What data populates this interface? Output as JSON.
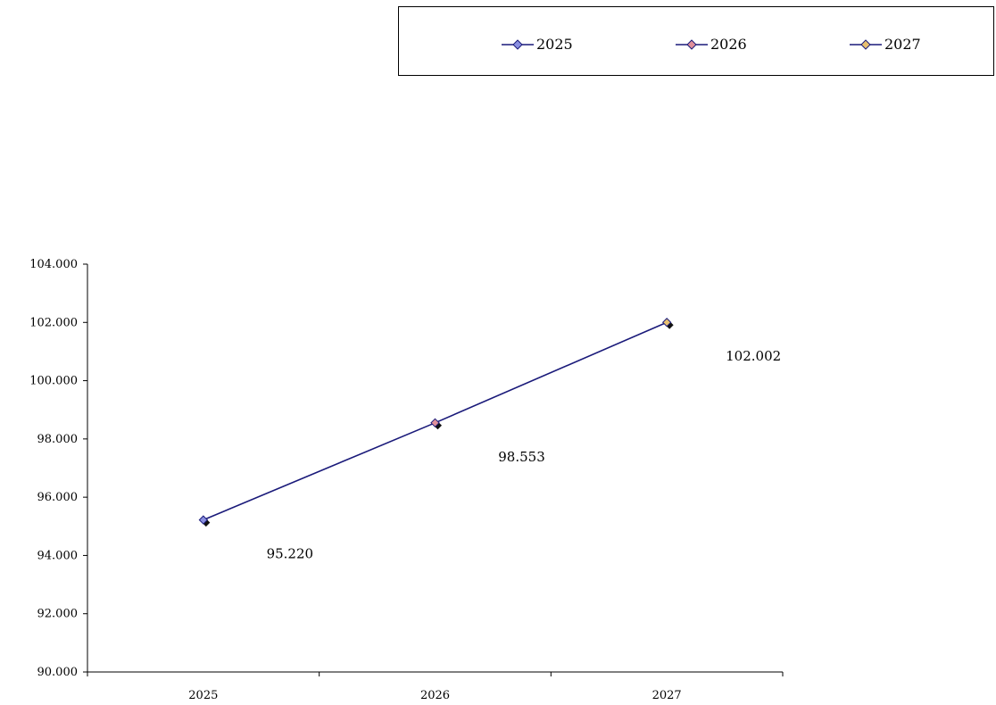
{
  "chart_data": {
    "type": "line",
    "categories": [
      "2025",
      "2026",
      "2027"
    ],
    "values": [
      95.22,
      98.553,
      102.002
    ],
    "value_labels": [
      "95.220",
      "98.553",
      "102.002"
    ],
    "ylim": [
      90.0,
      104.0
    ],
    "y_ticks": [
      90.0,
      92.0,
      94.0,
      96.0,
      98.0,
      100.0,
      102.0,
      104.0
    ],
    "y_tick_labels": [
      "90.000",
      "92.000",
      "94.000",
      "96.000",
      "98.000",
      "100.000",
      "102.000",
      "104.000"
    ],
    "title": "",
    "xlabel": "",
    "ylabel": "",
    "grid": false,
    "legend": {
      "placement": "top-right",
      "entries": [
        {
          "label": "2025",
          "marker_color": "#8a8fe0"
        },
        {
          "label": "2026",
          "marker_color": "#e0909a"
        },
        {
          "label": "2027",
          "marker_color": "#e8c070"
        }
      ]
    },
    "colors": {
      "line": "#1a1a7a",
      "axis": "#000000",
      "marker_shadow": "#111111",
      "point_markers": [
        "#8a8fe0",
        "#e0909a",
        "#e8c070"
      ]
    }
  }
}
